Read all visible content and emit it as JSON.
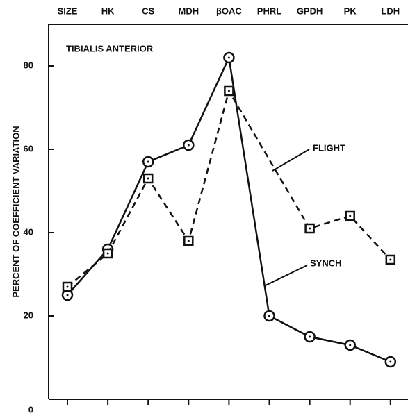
{
  "chart_data": {
    "type": "line",
    "annotation": "TIBIALIS ANTERIOR",
    "y_label": "PERCENT OF COEFFICIENT VARIATION",
    "categories": [
      "SIZE",
      "HK",
      "CS",
      "MDH",
      "βOAC",
      "PHRL",
      "GPDH",
      "PK",
      "LDH"
    ],
    "series": [
      {
        "name": "SYNCH",
        "color": "#111111",
        "values": [
          25,
          36,
          57,
          61,
          82,
          20,
          15,
          13,
          9
        ]
      },
      {
        "name": "FLIGHT",
        "color": "#111111",
        "values": [
          27,
          35,
          53,
          38,
          74,
          null,
          41,
          44,
          33.5
        ]
      }
    ],
    "ylim": [
      0,
      90
    ],
    "yticks": [
      0,
      20,
      40,
      60,
      80
    ]
  }
}
